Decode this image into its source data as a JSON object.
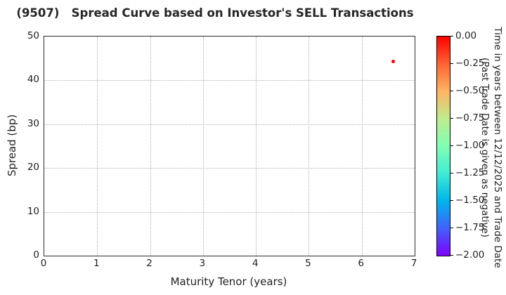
{
  "chart_data": {
    "type": "scatter",
    "title": "(9507)   Spread Curve based on Investor's SELL Transactions",
    "xlabel": "Maturity Tenor (years)",
    "ylabel": "Spread (bp)",
    "xlim": [
      0,
      7
    ],
    "ylim": [
      0,
      50
    ],
    "xticks": [
      0,
      1,
      2,
      3,
      4,
      5,
      6,
      7
    ],
    "yticks": [
      0,
      10,
      20,
      30,
      40,
      50
    ],
    "grid": true,
    "grid_style": "dotted",
    "legend_position": "none",
    "points": [
      {
        "x": 6.6,
        "y": 44.3,
        "color": "#ff0000"
      }
    ],
    "colorbar": {
      "title_lines": [
        "Time in years between 12/12/2025 and Trade Date",
        "(Past Trade Date is given as negative)"
      ],
      "vmax": 0.0,
      "vmin": -2.0,
      "tick_labels": [
        "0.00",
        "−0.25",
        "−0.50",
        "−0.75",
        "−1.00",
        "−1.25",
        "−1.50",
        "−1.75",
        "−2.00"
      ],
      "colormap": "rainbow reversed (0.00 = red at top, −2.00 = purple at bottom)",
      "gradient_stops": [
        "#ff0000",
        "#ff6232",
        "#ffb462",
        "#bfec8e",
        "#80ffb4",
        "#40ecd4",
        "#00b4ec",
        "#4062fa",
        "#8000ff"
      ]
    },
    "colors": {
      "marker": "#ff0000",
      "grid": "#b0b0b0",
      "spine": "#2a2a2a",
      "text": "#1f1f1f"
    }
  }
}
